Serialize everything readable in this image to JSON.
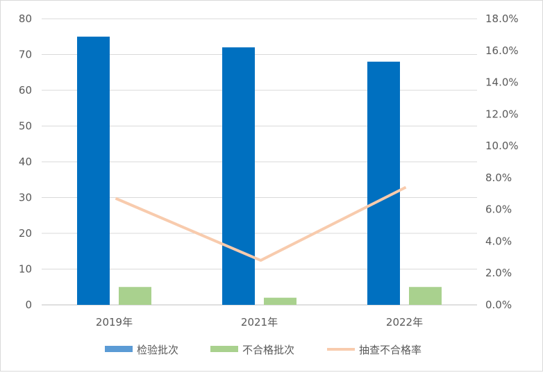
{
  "chart_data": {
    "type": "bar+line",
    "categories": [
      "2019年",
      "2021年",
      "2022年"
    ],
    "series": [
      {
        "name": "检验批次",
        "type": "bar",
        "axis": "left",
        "color": "#0070C0",
        "legend_color": "#5B9BD5",
        "values": [
          75,
          72,
          68
        ]
      },
      {
        "name": "不合格批次",
        "type": "bar",
        "axis": "left",
        "color": "#A9D18E",
        "values": [
          5,
          2,
          5
        ]
      },
      {
        "name": "抽查不合格率",
        "type": "line",
        "axis": "right",
        "color": "#F8CBAD",
        "values": [
          6.7,
          2.8,
          7.4
        ]
      }
    ],
    "left_axis": {
      "ylim": [
        0,
        80
      ],
      "ticks": [
        "0",
        "10",
        "20",
        "30",
        "40",
        "50",
        "60",
        "70",
        "80"
      ]
    },
    "right_axis": {
      "ylim": [
        0,
        18
      ],
      "ticks": [
        "0.0%",
        "2.0%",
        "4.0%",
        "6.0%",
        "8.0%",
        "10.0%",
        "12.0%",
        "14.0%",
        "16.0%",
        "18.0%"
      ]
    },
    "grid": true,
    "legend_position": "bottom"
  }
}
